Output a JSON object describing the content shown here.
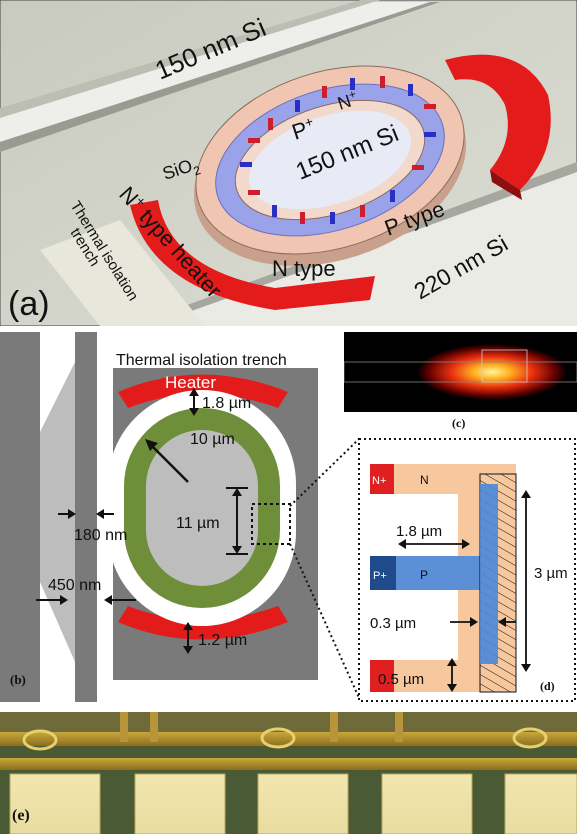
{
  "panel_a": {
    "label": "(a)",
    "top_si": "150 nm Si",
    "sio2": "SiO",
    "sio2_sub": "2",
    "thermal_trench_1": "Thermal isolation",
    "thermal_trench_2": "trench",
    "heater_label_pre": "N",
    "heater_label_sup": "+",
    "heater_label_post": " type heater",
    "n_type": "N type",
    "p_type": "P type",
    "si_220": "220 nm Si",
    "p_plus": "P",
    "p_plus_sup": "+",
    "n_plus": "N",
    "n_plus_sup": "+",
    "center_si": "150 nm Si",
    "colors": {
      "heater": "#e41b1b",
      "p_doping": "#8892e8",
      "ring": "#f0c6b3",
      "n_contact": "#cc1e2d",
      "p_contact": "#2a2fc4"
    }
  },
  "panel_b": {
    "label": "(b)",
    "trench_title": "Thermal isolation trench",
    "heater": "Heater",
    "gap_top": "1.8 µm",
    "radius": "10 µm",
    "coupling_len": "11 µm",
    "wg_width": "180 nm",
    "gap_450": "450 nm",
    "gap_bottom": "1.2 µm",
    "colors": {
      "ring": "#6f8e3a",
      "heater": "#e41b1b",
      "trench": "#7a7a7a"
    }
  },
  "panel_c": {
    "label": "(c)"
  },
  "panel_d": {
    "label": "(d)",
    "n_plus": "N+",
    "n": "N",
    "p_plus": "P+",
    "p": "P",
    "w_18": "1.8 µm",
    "h_3": "3 µm",
    "w_03": "0.3 µm",
    "h_05": "0.5 µm",
    "colors": {
      "n_region": "#f7c79e",
      "p_region": "#5b8fd6",
      "n_plus": "#e02020",
      "p_plus": "#1f4a8c"
    }
  },
  "panel_e": {
    "label": "(e)"
  }
}
